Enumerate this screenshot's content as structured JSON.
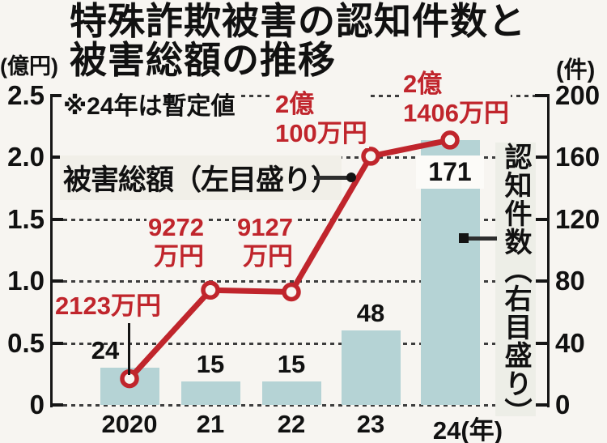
{
  "title": {
    "line1": "特殊詐欺被害の認知件数と",
    "line2": "被害総額の推移"
  },
  "units": {
    "left": "(億円)",
    "right": "(件)"
  },
  "note": "※24年は暫定値",
  "legend": {
    "line_series": "被害総額（左目盛り）",
    "bar_series": "認知件数（右目盛り）"
  },
  "colors": {
    "line_red": "#c0252c",
    "bar_fill": "#b5d3d5",
    "background": "#f7f5f1",
    "grid": "#3d3d3d",
    "text": "#141414"
  },
  "chart_data": {
    "type": "combo bar+line",
    "categories": [
      "2020",
      "21",
      "22",
      "23",
      "24(年)"
    ],
    "series": [
      {
        "name": "認知件数（右目盛り）",
        "type": "bar",
        "axis": "right",
        "unit": "件",
        "values": [
          24,
          15,
          15,
          48,
          171
        ],
        "value_labels": [
          "24",
          "15",
          "15",
          "48",
          "171"
        ]
      },
      {
        "name": "被害総額（左目盛り）",
        "type": "line",
        "axis": "left",
        "unit": "億円",
        "values": [
          0.2123,
          0.9272,
          0.9127,
          2.01,
          2.1406
        ],
        "point_labels": [
          [
            "2123万円"
          ],
          [
            "9272",
            "万円"
          ],
          [
            "9127",
            "万円"
          ],
          [
            "2億",
            "100万円"
          ],
          [
            "2億",
            "1406万円"
          ]
        ]
      }
    ],
    "left_axis": {
      "label": "(億円)",
      "ticks": [
        "2.5",
        "2.0",
        "1.5",
        "1.0",
        "0.5",
        "0"
      ],
      "range": [
        0,
        2.5
      ]
    },
    "right_axis": {
      "label": "(件)",
      "ticks": [
        "200",
        "160",
        "120",
        "80",
        "40",
        "0"
      ],
      "range": [
        0,
        200
      ]
    },
    "grid": "horizontal dashed",
    "note": "※24年は暫定値",
    "legend_position": "annotations inside plot"
  }
}
